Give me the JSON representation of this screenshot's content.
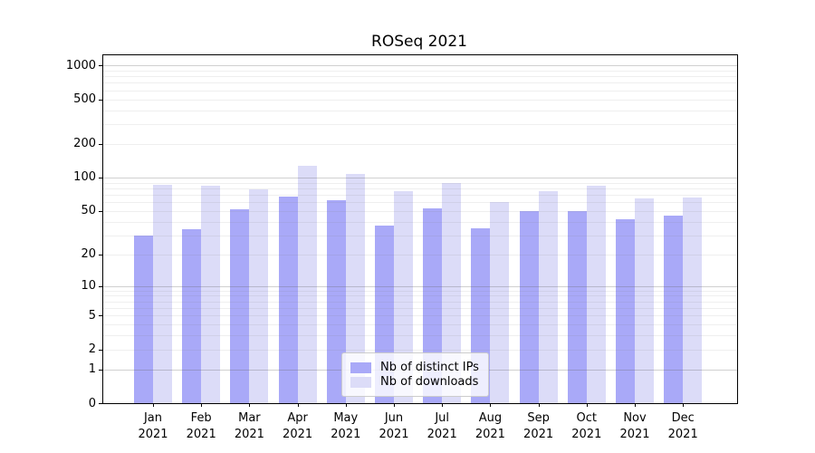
{
  "title": "ROSeq 2021",
  "chart_data": {
    "type": "bar",
    "title": "ROSeq 2021",
    "xlabel": "",
    "ylabel": "",
    "scale": "log1p",
    "ylim": [
      0,
      1230
    ],
    "grid": "horizontal",
    "legend_position": "bottom-center-inside",
    "category_year": "2021",
    "categories": [
      "Jan",
      "Feb",
      "Mar",
      "Apr",
      "May",
      "Jun",
      "Jul",
      "Aug",
      "Sep",
      "Oct",
      "Nov",
      "Dec"
    ],
    "y_ticks": [
      1000,
      500,
      200,
      100,
      50,
      20,
      10,
      5,
      2,
      1,
      0
    ],
    "grid_major": [
      1000,
      100,
      10,
      1
    ],
    "grid_minor": [
      900,
      800,
      700,
      600,
      500,
      400,
      300,
      200,
      90,
      80,
      70,
      60,
      50,
      40,
      30,
      20,
      9,
      8,
      7,
      6,
      5,
      4,
      3,
      2
    ],
    "series": [
      {
        "name": "Nb of distinct IPs",
        "color": "#a9a9f8",
        "values": [
          30,
          34,
          52,
          67,
          63,
          37,
          53,
          35,
          50,
          50,
          42,
          45
        ]
      },
      {
        "name": "Nb of downloads",
        "color": "#dcdcf8",
        "values": [
          86,
          84,
          79,
          128,
          107,
          76,
          89,
          60,
          75,
          85,
          65,
          66
        ]
      }
    ]
  }
}
